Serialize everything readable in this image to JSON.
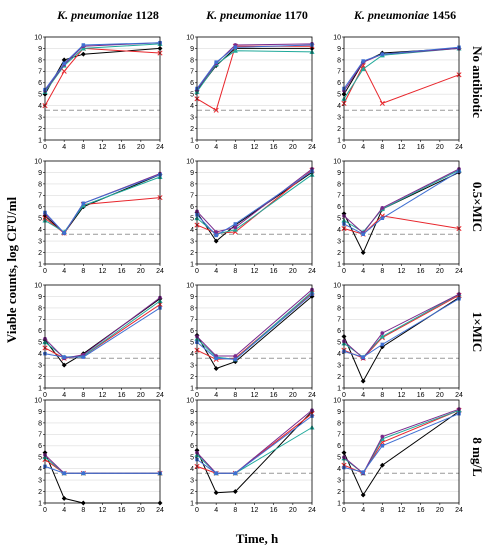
{
  "column_titles": [
    {
      "italic": "K. pneumoniae",
      "number": "1128"
    },
    {
      "italic": "K. pneumoniae",
      "number": "1170"
    },
    {
      "italic": "K. pneumoniae",
      "number": "1456"
    }
  ],
  "row_labels": [
    "No antibiotic",
    "0.5×MIC",
    "1×MIC",
    "8 mg/L"
  ],
  "ylabel": "Viable counts, log CFU/ml",
  "xlabel": "Time, h",
  "x_ticks": [
    0,
    4,
    8,
    12,
    16,
    20,
    24
  ],
  "y_ticks": [
    1,
    2,
    3,
    4,
    5,
    6,
    7,
    8,
    9,
    10
  ],
  "series_colors": [
    "#000000",
    "#e8262c",
    "#1fa99a",
    "#7a2a8c",
    "#3f6fd2",
    "#e04fd8",
    "#9a7a1e"
  ],
  "chart_data": {
    "type": "line",
    "x": [
      0,
      4,
      8,
      24
    ],
    "xlim": [
      0,
      24
    ],
    "ylim": [
      1,
      10
    ],
    "detection_limit": 3.6,
    "grid": true,
    "panels": [
      {
        "row": 0,
        "col": 0,
        "series": [
          {
            "values": [
              5.0,
              8.0,
              8.5,
              9.0
            ]
          },
          {
            "values": [
              4.0,
              7.0,
              9.0,
              8.6
            ]
          },
          {
            "values": [
              5.2,
              7.5,
              9.0,
              9.4
            ]
          },
          {
            "values": [
              5.3,
              7.6,
              9.2,
              9.5
            ]
          },
          {
            "values": [
              5.4,
              7.7,
              9.3,
              9.5
            ]
          }
        ]
      },
      {
        "row": 0,
        "col": 1,
        "series": [
          {
            "values": [
              5.3,
              7.5,
              9.0,
              9.0
            ]
          },
          {
            "values": [
              4.6,
              3.6,
              9.2,
              9.2
            ]
          },
          {
            "values": [
              5.2,
              7.6,
              8.8,
              8.7
            ]
          },
          {
            "values": [
              5.4,
              7.7,
              9.3,
              9.4
            ]
          },
          {
            "values": [
              5.5,
              7.8,
              9.1,
              9.3
            ]
          }
        ]
      },
      {
        "row": 0,
        "col": 2,
        "series": [
          {
            "values": [
              5.0,
              7.8,
              8.6,
              9.0
            ]
          },
          {
            "values": [
              4.2,
              7.5,
              4.2,
              6.7
            ]
          },
          {
            "values": [
              4.6,
              7.2,
              8.4,
              9.0
            ]
          },
          {
            "values": [
              5.3,
              7.8,
              8.5,
              9.0
            ]
          },
          {
            "values": [
              5.5,
              7.9,
              8.5,
              9.1
            ]
          }
        ]
      },
      {
        "row": 1,
        "col": 0,
        "series": [
          {
            "values": [
              5.2,
              3.7,
              6.0,
              8.8
            ]
          },
          {
            "values": [
              5.0,
              3.7,
              6.2,
              6.8
            ]
          },
          {
            "values": [
              4.8,
              3.8,
              6.1,
              8.6
            ]
          },
          {
            "values": [
              5.4,
              3.7,
              6.3,
              8.9
            ]
          },
          {
            "values": [
              5.5,
              3.7,
              6.3,
              8.8
            ]
          }
        ]
      },
      {
        "row": 1,
        "col": 1,
        "series": [
          {
            "values": [
              5.5,
              3.0,
              4.4,
              9.0
            ]
          },
          {
            "values": [
              4.4,
              3.7,
              3.8,
              9.2
            ]
          },
          {
            "values": [
              5.0,
              3.6,
              4.0,
              8.8
            ]
          },
          {
            "values": [
              5.6,
              3.8,
              4.2,
              9.3
            ]
          },
          {
            "values": [
              5.3,
              3.5,
              4.5,
              9.1
            ]
          }
        ]
      },
      {
        "row": 1,
        "col": 2,
        "series": [
          {
            "values": [
              5.4,
              2.0,
              5.8,
              9.0
            ]
          },
          {
            "values": [
              4.1,
              3.6,
              5.2,
              4.1
            ]
          },
          {
            "values": [
              4.8,
              3.8,
              5.8,
              9.2
            ]
          },
          {
            "values": [
              5.2,
              3.7,
              5.9,
              9.3
            ]
          },
          {
            "values": [
              4.5,
              3.6,
              5.0,
              9.1
            ]
          }
        ]
      },
      {
        "row": 2,
        "col": 0,
        "series": [
          {
            "values": [
              5.2,
              3.0,
              4.0,
              8.8
            ]
          },
          {
            "values": [
              4.5,
              3.6,
              3.8,
              8.3
            ]
          },
          {
            "values": [
              5.0,
              3.7,
              3.8,
              8.6
            ]
          },
          {
            "values": [
              5.3,
              3.6,
              3.9,
              8.9
            ]
          },
          {
            "values": [
              4.0,
              3.7,
              3.7,
              8.0
            ]
          }
        ]
      },
      {
        "row": 2,
        "col": 1,
        "series": [
          {
            "values": [
              5.6,
              2.7,
              3.3,
              9.0
            ]
          },
          {
            "values": [
              4.3,
              3.5,
              3.6,
              9.3
            ]
          },
          {
            "values": [
              5.3,
              3.7,
              3.5,
              9.4
            ]
          },
          {
            "values": [
              5.5,
              3.8,
              3.8,
              9.6
            ]
          },
          {
            "values": [
              5.0,
              3.6,
              3.5,
              9.2
            ]
          }
        ]
      },
      {
        "row": 2,
        "col": 2,
        "series": [
          {
            "values": [
              5.5,
              1.6,
              4.6,
              8.9
            ]
          },
          {
            "values": [
              4.3,
              3.6,
              5.4,
              9.1
            ]
          },
          {
            "values": [
              4.9,
              3.7,
              5.5,
              9.2
            ]
          },
          {
            "values": [
              5.1,
              3.6,
              5.8,
              9.2
            ]
          },
          {
            "values": [
              4.2,
              3.7,
              4.8,
              8.8
            ]
          }
        ]
      },
      {
        "row": 3,
        "col": 0,
        "series": [
          {
            "values": [
              5.4,
              1.4,
              1.0,
              1.0
            ]
          },
          {
            "values": [
              4.8,
              3.6,
              3.6,
              3.6
            ]
          },
          {
            "values": [
              5.0,
              3.6,
              3.6,
              3.6
            ]
          },
          {
            "values": [
              5.2,
              3.6,
              3.6,
              3.6
            ]
          },
          {
            "values": [
              4.2,
              3.6,
              3.6,
              3.6
            ]
          }
        ]
      },
      {
        "row": 3,
        "col": 1,
        "series": [
          {
            "values": [
              5.6,
              1.9,
              2.0,
              9.0
            ]
          },
          {
            "values": [
              4.2,
              3.6,
              3.6,
              8.8
            ]
          },
          {
            "values": [
              5.2,
              3.6,
              3.6,
              7.6
            ]
          },
          {
            "values": [
              5.4,
              3.6,
              3.6,
              9.1
            ]
          },
          {
            "values": [
              4.8,
              3.6,
              3.6,
              8.6
            ]
          }
        ]
      },
      {
        "row": 3,
        "col": 2,
        "series": [
          {
            "values": [
              5.4,
              1.7,
              4.3,
              9.0
            ]
          },
          {
            "values": [
              4.3,
              3.6,
              6.3,
              9.1
            ]
          },
          {
            "values": [
              4.9,
              3.6,
              6.6,
              9.1
            ]
          },
          {
            "values": [
              5.0,
              3.6,
              6.8,
              9.2
            ]
          },
          {
            "values": [
              4.1,
              3.7,
              6.0,
              8.8
            ]
          }
        ]
      }
    ]
  }
}
